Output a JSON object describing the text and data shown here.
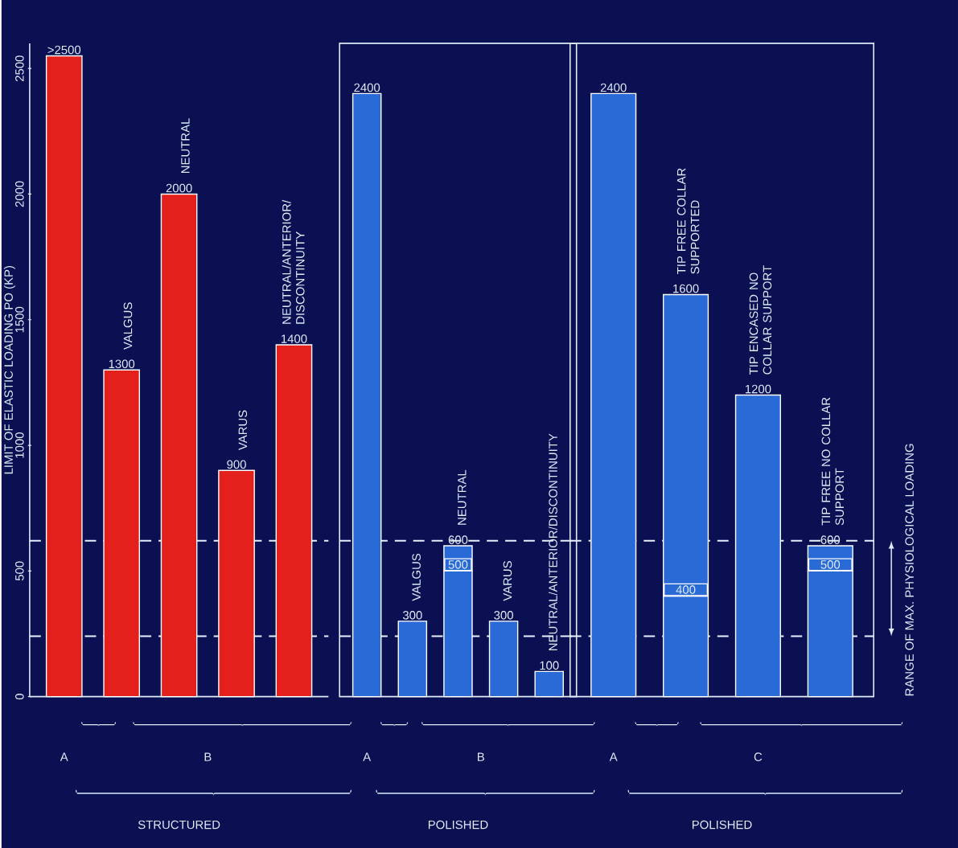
{
  "chart_data": [
    {
      "type": "bar",
      "ylabel": "LIMIT OF ELASTIC LOADING PO (KP)",
      "xlabel": "STRUCTURED",
      "color": "#e3201b",
      "categories": [
        null,
        "VALGUS",
        "NEUTRAL",
        "VARUS",
        "NEUTRAL/ANTERIOR/ DISCONTINUITY"
      ],
      "values": [
        2550,
        1300,
        2000,
        900,
        1400
      ],
      "value_labels": [
        ">2500",
        "1300",
        "2000",
        "900",
        "1400"
      ],
      "ylim": [
        0,
        2600
      ],
      "yticks": [
        0,
        500,
        1000,
        1500,
        2000,
        2500
      ],
      "annotations": [
        "A",
        "B"
      ],
      "ref_lines": [
        {
          "axis": "y",
          "value": 240,
          "color": "#e8f0ff",
          "line_style": "dashed"
        },
        {
          "axis": "y",
          "value": 620,
          "color": "#e8f0ff",
          "line_style": "dashed"
        }
      ]
    },
    {
      "type": "bar",
      "xlabel": "POLISHED",
      "stacked": true,
      "categories": [
        null,
        "VALGUS",
        "NEUTRAL",
        "VARUS",
        "NEUTRAL/ANTERIOR/DISCONTINUITY"
      ],
      "series": [
        {
          "color": "#2a6ad6",
          "values": [
            2400,
            300,
            500,
            300,
            100
          ],
          "value_labels": [
            null,
            null,
            "500",
            null,
            null
          ]
        },
        {
          "color": "#2a6ad6",
          "values": [
            null,
            null,
            100,
            null,
            null
          ]
        }
      ],
      "totals": [
        "2400",
        "300",
        "600",
        "300",
        "100"
      ],
      "ylim": [
        0,
        2600
      ],
      "annotations": [
        "A",
        "B"
      ],
      "ref_lines": [
        {
          "axis": "y",
          "value": 240,
          "color": "#e8f0ff",
          "line_style": "dashed"
        },
        {
          "axis": "y",
          "value": 620,
          "color": "#e8f0ff",
          "line_style": "dashed"
        }
      ]
    },
    {
      "type": "bar",
      "xlabel": "POLISHED",
      "stacked": true,
      "categories": [
        null,
        "TIP FREE COLLAR SUPPORTED",
        "TIP ENCASED NO COLLAR SUPPORT",
        "TIP FREE NO COLLAR SUPPORT"
      ],
      "series": [
        {
          "color": "#2a6ad6",
          "values": [
            2400,
            400,
            1200,
            500
          ],
          "value_labels": [
            null,
            "400",
            null,
            "500"
          ]
        },
        {
          "color": "#2a6ad6",
          "values": [
            null,
            1200,
            null,
            100
          ]
        }
      ],
      "totals": [
        "2400",
        "1600",
        "1200",
        "600"
      ],
      "ylim": [
        0,
        2600
      ],
      "annotations": [
        "A",
        "C",
        "RANGE OF MAX. PHYSIOLOGICAL LOADING"
      ],
      "ref_lines": [
        {
          "axis": "y",
          "value": 240,
          "color": "#e8f0ff",
          "line_style": "dashed"
        },
        {
          "axis": "y",
          "value": 620,
          "color": "#e8f0ff",
          "line_style": "dashed"
        }
      ]
    }
  ]
}
